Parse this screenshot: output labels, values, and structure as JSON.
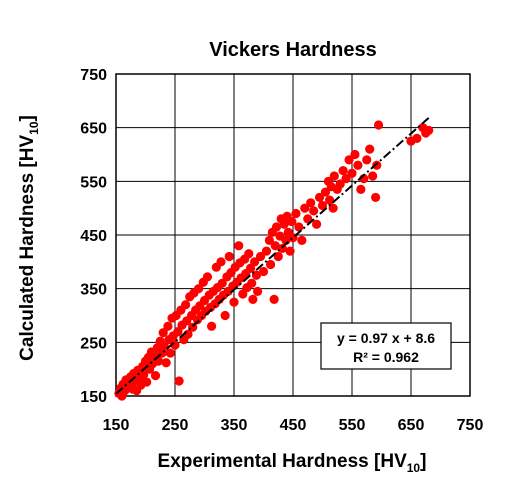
{
  "chart_data": {
    "type": "scatter",
    "title": "Vickers Hardness",
    "xlabel": {
      "main": "Experimental Hardness [HV",
      "sub": "10",
      "end": "]"
    },
    "ylabel": {
      "main": "Calculated Hardness [HV",
      "sub": "10",
      "end": "]"
    },
    "xlim": [
      150,
      750
    ],
    "ylim": [
      150,
      750
    ],
    "xticks": [
      "150",
      "250",
      "350",
      "450",
      "550",
      "650",
      "750"
    ],
    "yticks": [
      "150",
      "250",
      "350",
      "450",
      "550",
      "650",
      "750"
    ],
    "grid": true,
    "marker_color": "#ff0000",
    "trendline": {
      "slope": 0.97,
      "intercept": 8.6,
      "x_range": [
        150,
        680
      ],
      "style": "dash-dot",
      "color": "#000000"
    },
    "annotation": {
      "equation": "y = 0.97 x + 8.6",
      "r2": "R² = 0.962",
      "position": "bottom-right"
    },
    "points": [
      [
        155,
        155
      ],
      [
        158,
        165
      ],
      [
        160,
        150
      ],
      [
        162,
        172
      ],
      [
        165,
        160
      ],
      [
        167,
        180
      ],
      [
        170,
        168
      ],
      [
        172,
        176
      ],
      [
        175,
        186
      ],
      [
        178,
        163
      ],
      [
        180,
        192
      ],
      [
        182,
        178
      ],
      [
        185,
        160
      ],
      [
        187,
        198
      ],
      [
        190,
        182
      ],
      [
        192,
        170
      ],
      [
        195,
        205
      ],
      [
        197,
        190
      ],
      [
        200,
        215
      ],
      [
        202,
        176
      ],
      [
        205,
        222
      ],
      [
        207,
        200
      ],
      [
        210,
        232
      ],
      [
        212,
        210
      ],
      [
        215,
        225
      ],
      [
        217,
        188
      ],
      [
        220,
        240
      ],
      [
        222,
        215
      ],
      [
        225,
        252
      ],
      [
        228,
        230
      ],
      [
        230,
        268
      ],
      [
        232,
        242
      ],
      [
        235,
        212
      ],
      [
        238,
        280
      ],
      [
        240,
        255
      ],
      [
        242,
        230
      ],
      [
        245,
        295
      ],
      [
        247,
        262
      ],
      [
        250,
        245
      ],
      [
        252,
        300
      ],
      [
        255,
        270
      ],
      [
        257,
        178
      ],
      [
        260,
        310
      ],
      [
        262,
        282
      ],
      [
        265,
        255
      ],
      [
        268,
        320
      ],
      [
        270,
        290
      ],
      [
        272,
        265
      ],
      [
        275,
        335
      ],
      [
        278,
        300
      ],
      [
        280,
        278
      ],
      [
        282,
        342
      ],
      [
        285,
        310
      ],
      [
        288,
        292
      ],
      [
        290,
        350
      ],
      [
        292,
        318
      ],
      [
        295,
        300
      ],
      [
        298,
        362
      ],
      [
        300,
        328
      ],
      [
        302,
        308
      ],
      [
        305,
        372
      ],
      [
        308,
        338
      ],
      [
        310,
        315
      ],
      [
        312,
        280
      ],
      [
        315,
        345
      ],
      [
        318,
        322
      ],
      [
        320,
        390
      ],
      [
        322,
        352
      ],
      [
        325,
        330
      ],
      [
        328,
        400
      ],
      [
        330,
        360
      ],
      [
        332,
        338
      ],
      [
        335,
        300
      ],
      [
        338,
        372
      ],
      [
        340,
        345
      ],
      [
        342,
        410
      ],
      [
        345,
        380
      ],
      [
        348,
        355
      ],
      [
        350,
        325
      ],
      [
        352,
        390
      ],
      [
        355,
        362
      ],
      [
        358,
        430
      ],
      [
        360,
        398
      ],
      [
        362,
        370
      ],
      [
        365,
        340
      ],
      [
        368,
        405
      ],
      [
        370,
        378
      ],
      [
        372,
        352
      ],
      [
        375,
        415
      ],
      [
        378,
        388
      ],
      [
        380,
        360
      ],
      [
        382,
        330
      ],
      [
        385,
        400
      ],
      [
        388,
        375
      ],
      [
        390,
        345
      ],
      [
        395,
        410
      ],
      [
        400,
        382
      ],
      [
        405,
        420
      ],
      [
        410,
        440
      ],
      [
        412,
        395
      ],
      [
        415,
        455
      ],
      [
        418,
        330
      ],
      [
        420,
        430
      ],
      [
        422,
        465
      ],
      [
        425,
        410
      ],
      [
        428,
        448
      ],
      [
        430,
        480
      ],
      [
        432,
        425
      ],
      [
        435,
        470
      ],
      [
        438,
        440
      ],
      [
        440,
        485
      ],
      [
        442,
        455
      ],
      [
        445,
        420
      ],
      [
        448,
        475
      ],
      [
        450,
        445
      ],
      [
        455,
        490
      ],
      [
        460,
        465
      ],
      [
        465,
        440
      ],
      [
        470,
        500
      ],
      [
        475,
        480
      ],
      [
        480,
        510
      ],
      [
        485,
        495
      ],
      [
        490,
        470
      ],
      [
        495,
        520
      ],
      [
        500,
        505
      ],
      [
        505,
        530
      ],
      [
        510,
        550
      ],
      [
        512,
        515
      ],
      [
        515,
        540
      ],
      [
        518,
        500
      ],
      [
        520,
        560
      ],
      [
        525,
        535
      ],
      [
        530,
        545
      ],
      [
        535,
        570
      ],
      [
        540,
        555
      ],
      [
        545,
        590
      ],
      [
        550,
        565
      ],
      [
        555,
        600
      ],
      [
        560,
        580
      ],
      [
        565,
        535
      ],
      [
        570,
        555
      ],
      [
        575,
        590
      ],
      [
        580,
        610
      ],
      [
        585,
        560
      ],
      [
        590,
        520
      ],
      [
        592,
        580
      ],
      [
        595,
        655
      ],
      [
        650,
        625
      ],
      [
        660,
        630
      ],
      [
        670,
        650
      ],
      [
        675,
        640
      ],
      [
        680,
        645
      ]
    ]
  }
}
